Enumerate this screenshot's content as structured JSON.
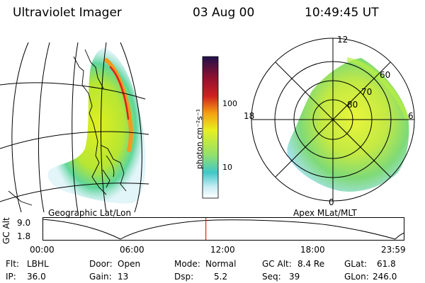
{
  "header": {
    "title": "Ultraviolet Imager",
    "date": "03 Aug 00",
    "time": "10:49:45 UT"
  },
  "colorbar": {
    "label": "photon cm⁻²s⁻¹",
    "tick_high": "100",
    "tick_low": "10"
  },
  "panels": {
    "left_caption": "Geographic Lat/Lon",
    "right_caption": "Apex MLat/MLT"
  },
  "polar": {
    "mlt_top": "12",
    "mlt_bottom": "0",
    "mlt_left": "18",
    "mlt_right": "6",
    "lat_60": "60",
    "lat_70": "70",
    "lat_80": "80"
  },
  "timeline": {
    "axis_label": "GC Alt",
    "y_top": "9.0",
    "y_bottom": "1.8",
    "ticks": [
      "00:00",
      "06:00",
      "12:00",
      "18:00",
      "23:59"
    ],
    "marker_color": "#e8201b"
  },
  "status": {
    "flt_label": "Flt:",
    "flt_value": "LBHL",
    "ip_label": "IP:",
    "ip_value": "36.0",
    "door_label": "Door:",
    "door_value": "Open",
    "gain_label": "Gain:",
    "gain_value": "13",
    "mode_label": "Mode:",
    "mode_value": "Normal",
    "dsp_label": "Dsp:",
    "dsp_value": "5.2",
    "gcalt_label": "GC Alt:",
    "gcalt_value": "8.4 Re",
    "seq_label": "Seq:",
    "seq_value": "39",
    "glat_label": "GLat:",
    "glat_value": "61.8",
    "glon_label": "GLon:",
    "glon_value": "246.0"
  }
}
